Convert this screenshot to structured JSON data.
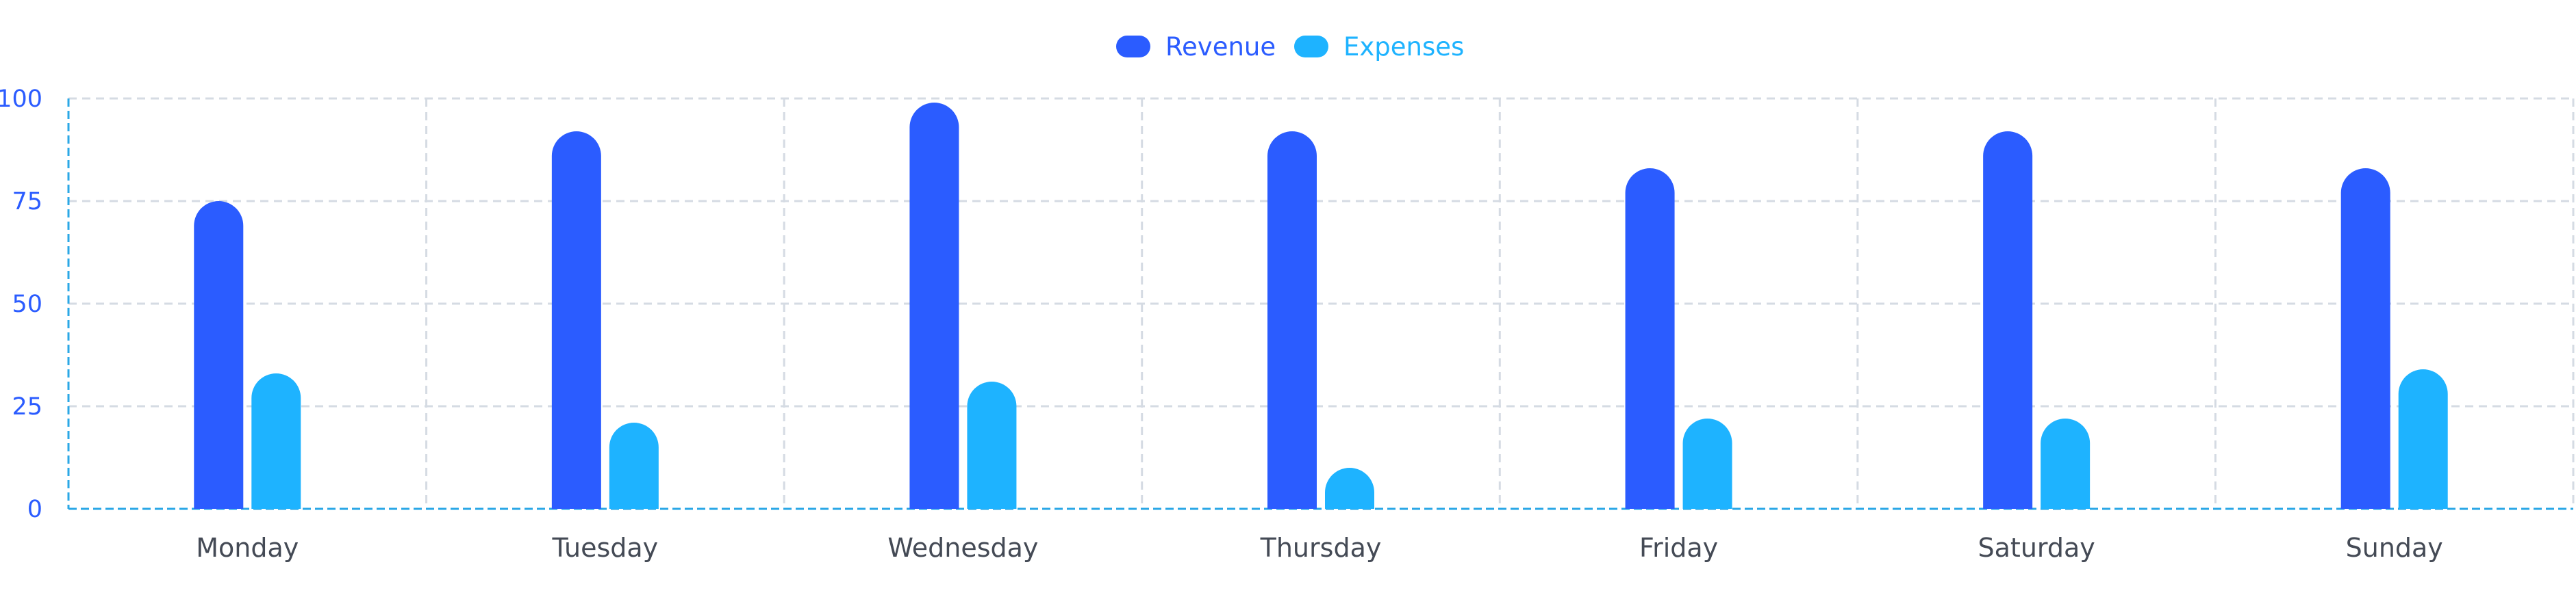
{
  "chart_data": {
    "type": "bar",
    "categories": [
      "Monday",
      "Tuesday",
      "Wednesday",
      "Thursday",
      "Friday",
      "Saturday",
      "Sunday"
    ],
    "series": [
      {
        "name": "Revenue",
        "values": [
          75,
          92,
          99,
          92,
          83,
          92,
          83
        ],
        "color": "#2b5cff"
      },
      {
        "name": "Expenses",
        "values": [
          33,
          21,
          31,
          10,
          22,
          22,
          34
        ],
        "color": "#1eb3ff"
      }
    ],
    "title": "",
    "xlabel": "",
    "ylabel": "",
    "ylim": [
      0,
      100
    ],
    "yticks": [
      0,
      25,
      50,
      75,
      100
    ],
    "grid": true,
    "legend_position": "top-center",
    "colors": {
      "axis": "#2aa7e6",
      "grid": "#d5dbe3",
      "tick_y": "#2b5cff",
      "tick_x": "#444a55"
    }
  }
}
